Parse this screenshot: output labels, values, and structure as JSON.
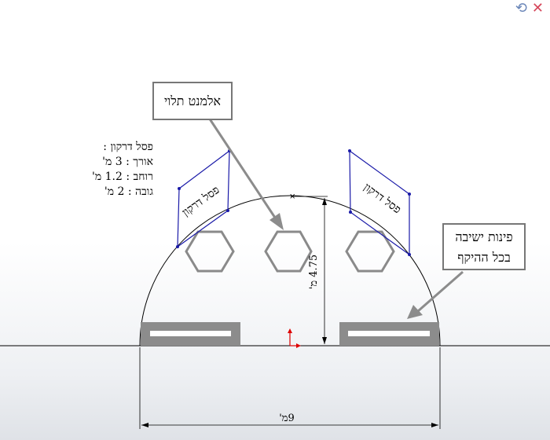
{
  "toolbar": {
    "rebuild_icon": "rebuild-icon",
    "close_icon": "close-icon",
    "accent_close": "#d6475b"
  },
  "spec": {
    "title": "פסל דרקון :",
    "length": "אורך : 3 מ'",
    "width": "רוחב : 1.2 מ'",
    "height": "גובה : 2 מ'"
  },
  "callouts": {
    "hanging_element": "אלמנט תלוי",
    "seating_line1": "פינות ישיבה",
    "seating_line2": "בכל ההיקף"
  },
  "sculptures": {
    "left_label": "פסל דרקון",
    "right_label": "פסל דרקון"
  },
  "dimensions": {
    "height": "4.75 מ'",
    "width": "9מ'"
  },
  "colors": {
    "sculpture_outline": "#1a1aa8",
    "hexagon_outline": "#8a8a8a",
    "bench": "#8c8c8c",
    "arrow": "#8c8c8c"
  }
}
